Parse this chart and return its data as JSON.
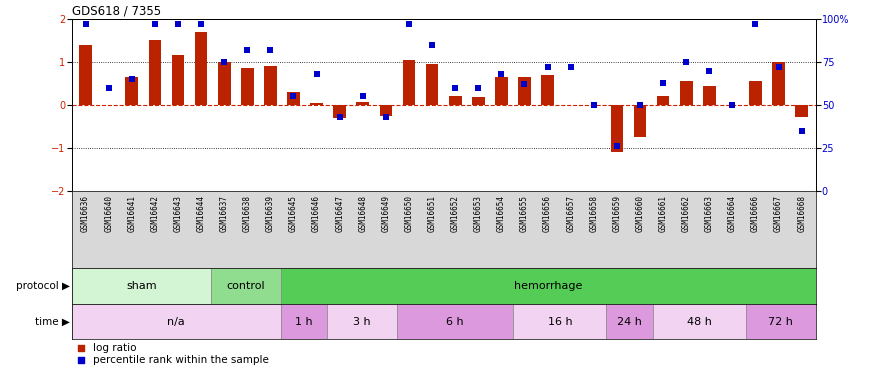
{
  "title": "GDS618 / 7355",
  "samples": [
    "GSM16636",
    "GSM16640",
    "GSM16641",
    "GSM16642",
    "GSM16643",
    "GSM16644",
    "GSM16637",
    "GSM16638",
    "GSM16639",
    "GSM16645",
    "GSM16646",
    "GSM16647",
    "GSM16648",
    "GSM16649",
    "GSM16650",
    "GSM16651",
    "GSM16652",
    "GSM16653",
    "GSM16654",
    "GSM16655",
    "GSM16656",
    "GSM16657",
    "GSM16658",
    "GSM16659",
    "GSM16660",
    "GSM16661",
    "GSM16662",
    "GSM16663",
    "GSM16664",
    "GSM16666",
    "GSM16667",
    "GSM16668"
  ],
  "log_ratio": [
    1.4,
    0.0,
    0.65,
    1.5,
    1.15,
    1.7,
    1.0,
    0.85,
    0.9,
    0.3,
    0.05,
    -0.3,
    0.08,
    -0.25,
    1.05,
    0.95,
    0.2,
    0.18,
    0.65,
    0.65,
    0.7,
    0.0,
    0.0,
    -1.1,
    -0.75,
    0.2,
    0.55,
    0.45,
    0.0,
    0.55,
    1.0,
    -0.28
  ],
  "percentile": [
    97,
    60,
    65,
    97,
    97,
    97,
    75,
    82,
    82,
    55,
    68,
    43,
    55,
    43,
    97,
    85,
    60,
    60,
    68,
    62,
    72,
    72,
    50,
    26,
    50,
    63,
    75,
    70,
    50,
    97,
    72,
    35
  ],
  "protocol_groups": [
    {
      "label": "sham",
      "start": 0,
      "end": 6,
      "color": "#d4f5d4"
    },
    {
      "label": "control",
      "start": 6,
      "end": 9,
      "color": "#90dd90"
    },
    {
      "label": "hemorrhage",
      "start": 9,
      "end": 32,
      "color": "#55cc55"
    }
  ],
  "time_groups": [
    {
      "label": "n/a",
      "start": 0,
      "end": 9,
      "color": "#f2d4f2"
    },
    {
      "label": "1 h",
      "start": 9,
      "end": 11,
      "color": "#dd99dd"
    },
    {
      "label": "3 h",
      "start": 11,
      "end": 14,
      "color": "#f2d4f2"
    },
    {
      "label": "6 h",
      "start": 14,
      "end": 19,
      "color": "#dd99dd"
    },
    {
      "label": "16 h",
      "start": 19,
      "end": 23,
      "color": "#f2d4f2"
    },
    {
      "label": "24 h",
      "start": 23,
      "end": 25,
      "color": "#dd99dd"
    },
    {
      "label": "48 h",
      "start": 25,
      "end": 29,
      "color": "#f2d4f2"
    },
    {
      "label": "72 h",
      "start": 29,
      "end": 32,
      "color": "#dd99dd"
    }
  ],
  "bar_color": "#bb2200",
  "dot_color": "#0000cc",
  "ylim": [
    -2,
    2
  ],
  "y2lim": [
    0,
    100
  ],
  "yticks_left": [
    -2,
    -1,
    0,
    1,
    2
  ],
  "yticks_right": [
    0,
    25,
    50,
    75,
    100
  ],
  "ytick_right_labels": [
    "0",
    "25",
    "50",
    "75",
    "100%"
  ],
  "hline_color": "#cc2200",
  "label_bg_color": "#d8d8d8"
}
